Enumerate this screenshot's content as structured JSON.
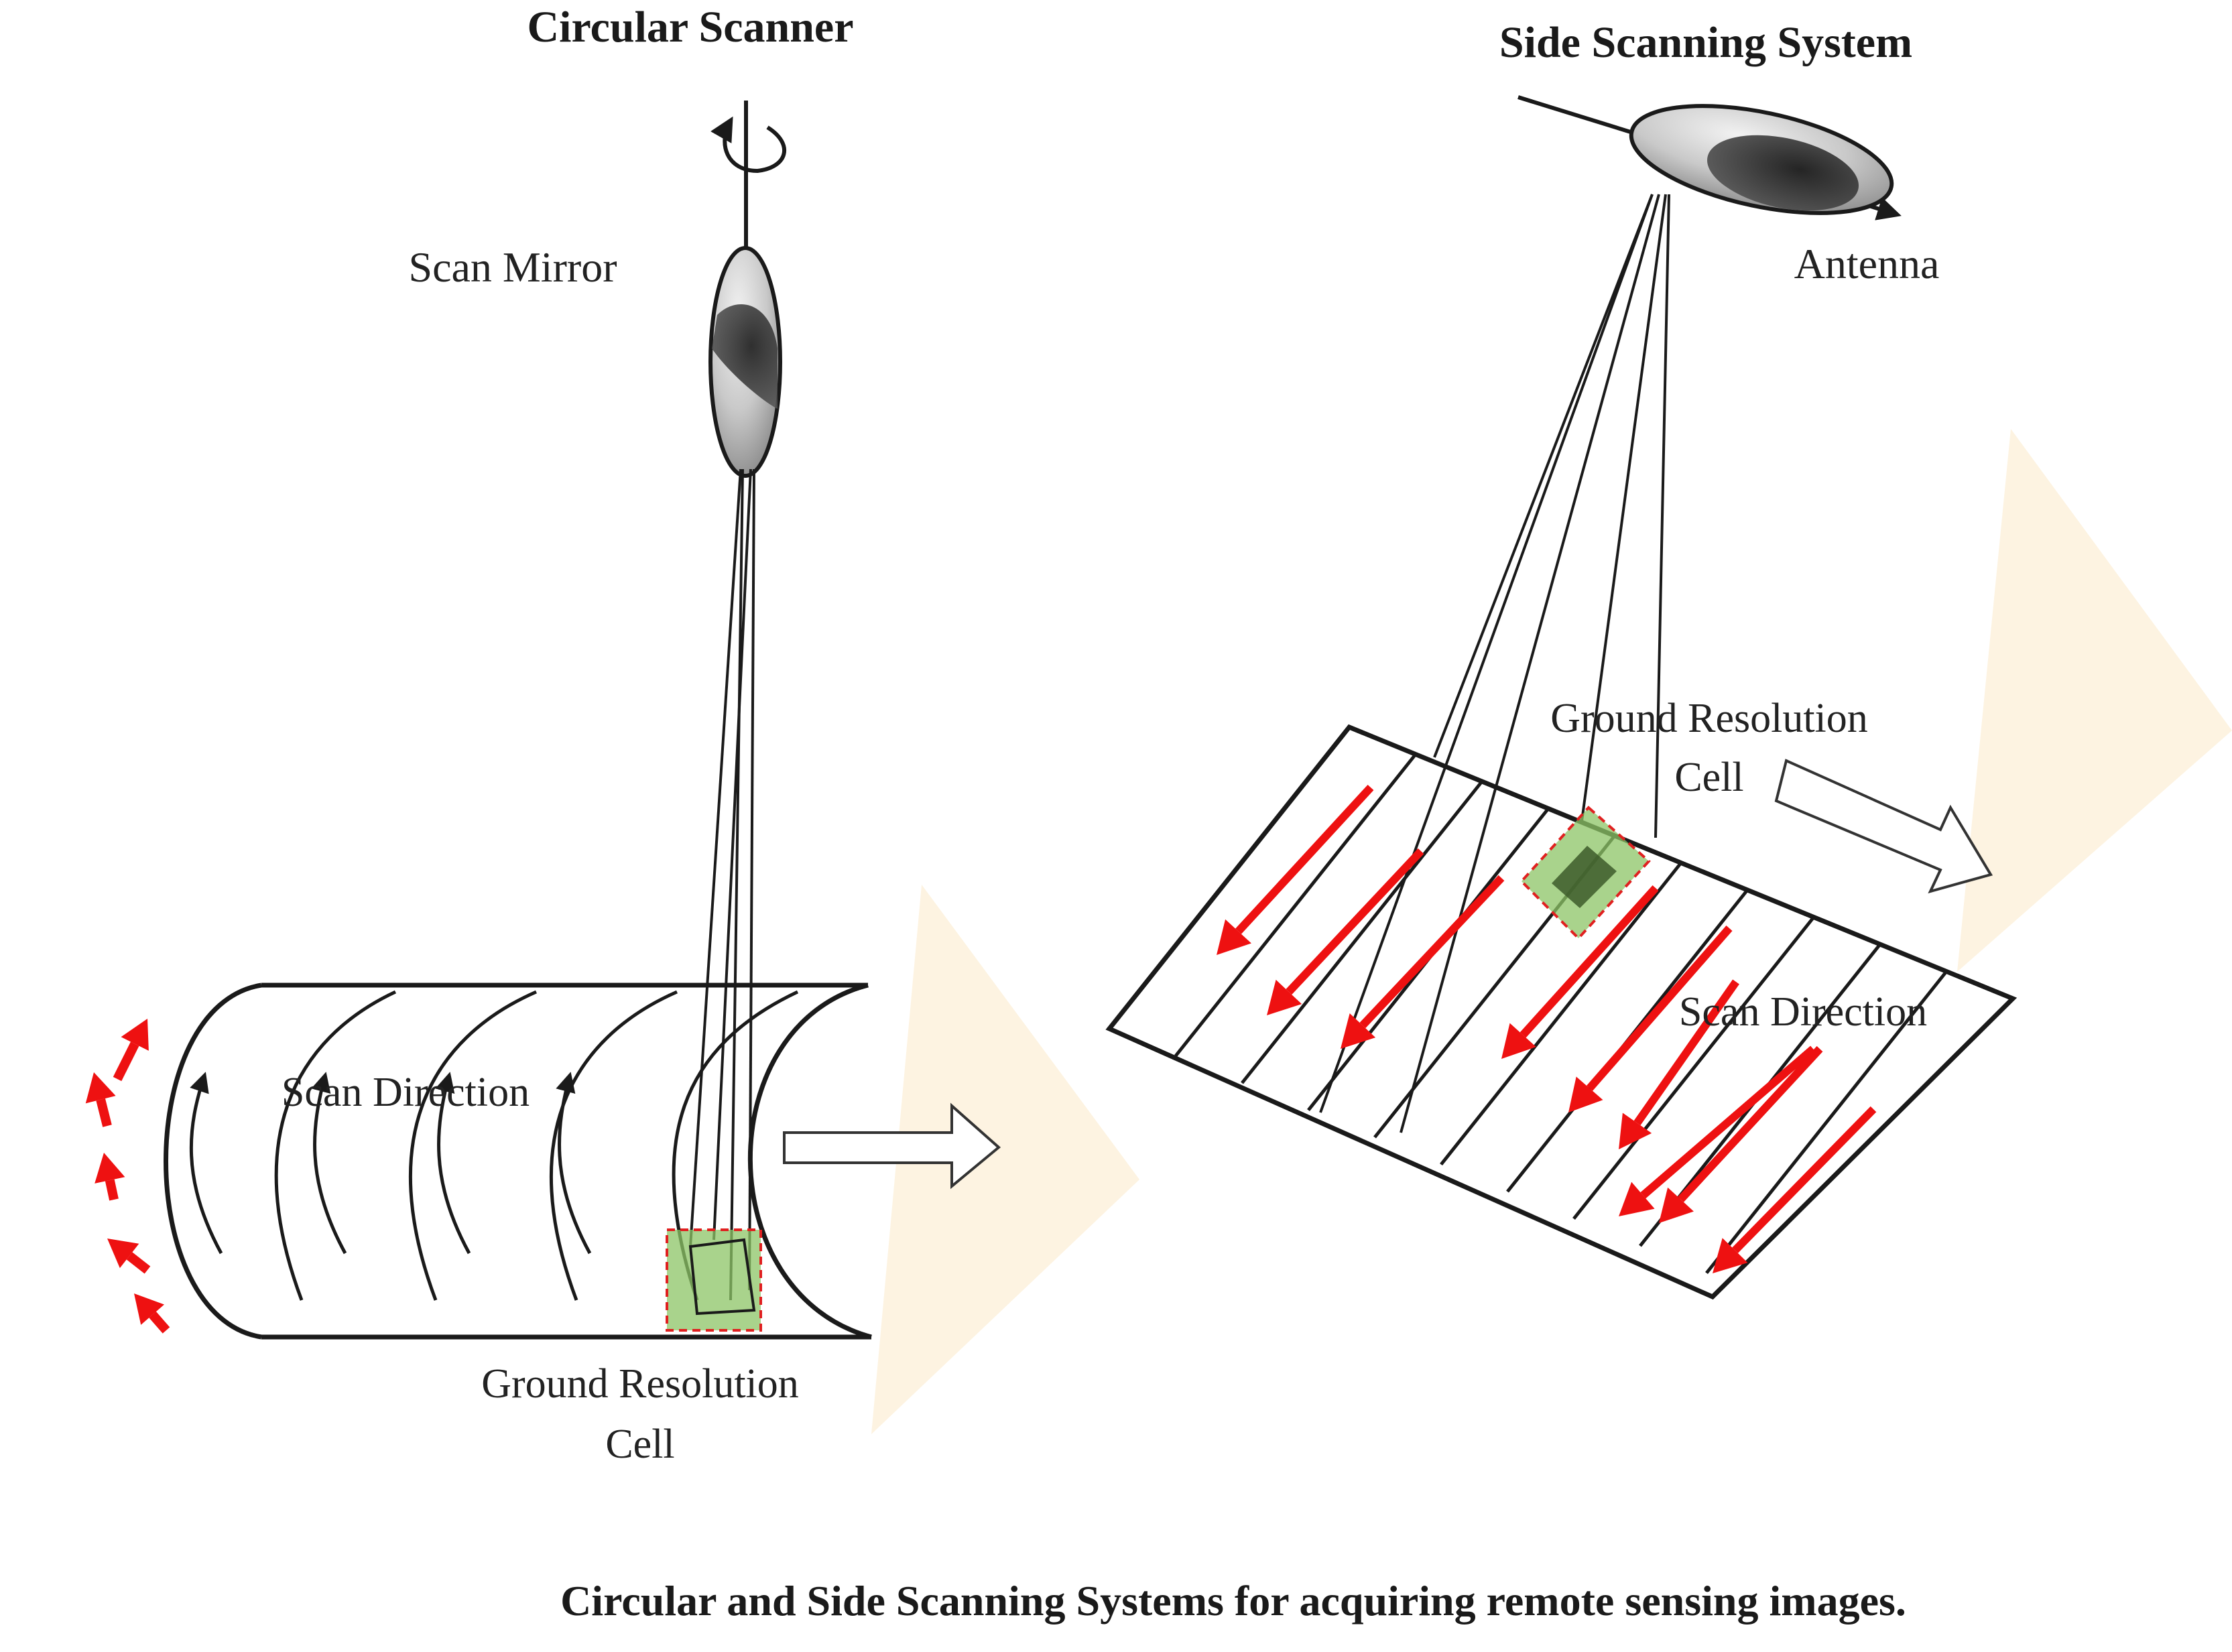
{
  "circular": {
    "title": "Circular Scanner",
    "mirror_label": "Scan Mirror",
    "scan_direction_label": "Scan Direction",
    "cell_label_line1": "Ground Resolution",
    "cell_label_line2": "Cell"
  },
  "side": {
    "title": "Side Scanning System",
    "antenna_label": "Antenna",
    "cell_label_line1": "Ground Resolution",
    "cell_label_line2": "Cell",
    "scan_direction_label": "Scan Direction"
  },
  "caption": "Circular and Side Scanning Systems for acquiring remote sensing images.",
  "colors": {
    "scan_arrow": "#ee1111",
    "cell_highlight": "#8cc466",
    "cell_border": "#e02020",
    "travel_triangle": "#fdf3e1",
    "line": "#1a1a1a"
  }
}
